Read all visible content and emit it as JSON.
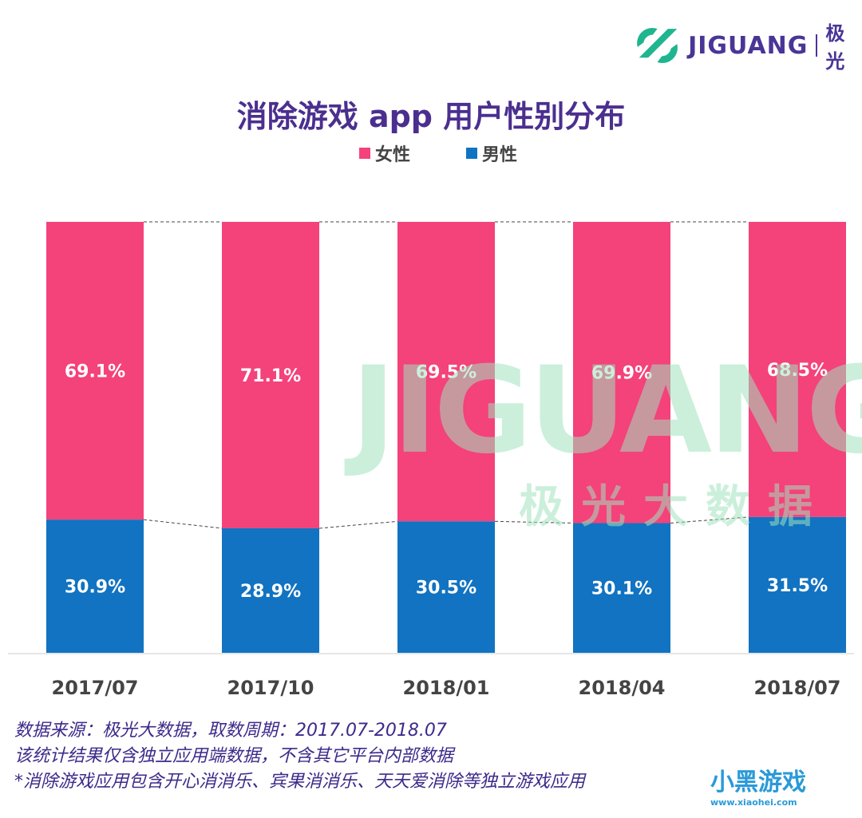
{
  "logo": {
    "brand": "JIGUANG",
    "cn": "极光"
  },
  "watermark": {
    "brand": "JIGUANG",
    "cn": "极光大数据"
  },
  "chart_data": {
    "type": "bar",
    "stacked": true,
    "normalized": true,
    "title": "消除游戏 app 用户性别分布",
    "categories": [
      "2017/07",
      "2017/10",
      "2018/01",
      "2018/04",
      "2018/07"
    ],
    "series": [
      {
        "name": "女性",
        "color": "#f4427a",
        "values": [
          69.1,
          71.1,
          69.5,
          69.9,
          68.5
        ],
        "labels": [
          "69.1%",
          "71.1%",
          "69.5%",
          "69.9%",
          "68.5%"
        ]
      },
      {
        "name": "男性",
        "color": "#1173c1",
        "values": [
          30.9,
          28.9,
          30.5,
          30.1,
          31.5
        ],
        "labels": [
          "30.9%",
          "28.9%",
          "30.5%",
          "30.1%",
          "31.5%"
        ]
      }
    ],
    "ylim": [
      0,
      100
    ],
    "legend": "top-center",
    "grid": false
  },
  "footer": {
    "line1": "数据来源：极光大数据，取数周期：2017.07-2018.07",
    "line2": "该统计结果仅含独立应用端数据，不含其它平台内部数据",
    "line3": " *消除游戏应用包含开心消消乐、宾果消消乐、天天爱消除等独立游戏应用"
  },
  "corner_logo": {
    "text": "小黑游戏",
    "url": "www.xiaohei.com"
  }
}
